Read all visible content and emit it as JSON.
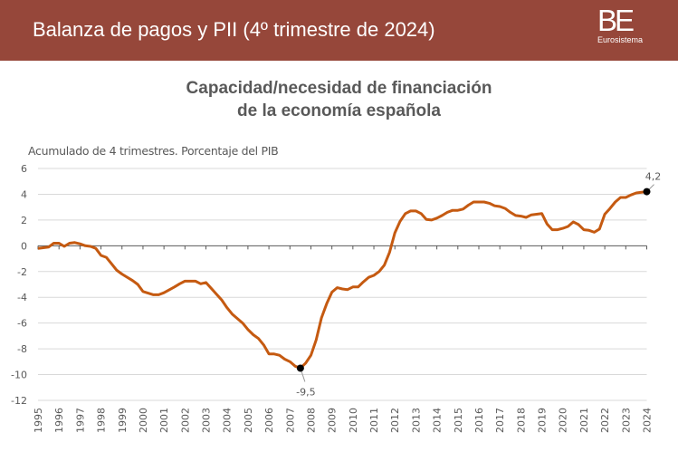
{
  "header": {
    "title": "Balanza de pagos y PII (4º trimestre de 2024)",
    "logo_text": "BE",
    "logo_sub": "Eurosistema"
  },
  "chart_data": {
    "type": "line",
    "title_line1": "Capacidad/necesidad de financiación",
    "title_line2": "de la economía española",
    "ylabel": "Acumulado de 4 trimestres. Porcentaje del PIB",
    "ylim": [
      -12,
      6
    ],
    "yticks": [
      6,
      4,
      2,
      0,
      -2,
      -4,
      -6,
      -8,
      -10,
      -12
    ],
    "xlim": [
      1995,
      2024
    ],
    "xticks": [
      1995,
      1996,
      1997,
      1998,
      1999,
      2000,
      2001,
      2002,
      2003,
      2004,
      2005,
      2006,
      2007,
      2008,
      2009,
      2010,
      2011,
      2012,
      2013,
      2014,
      2015,
      2016,
      2017,
      2018,
      2019,
      2020,
      2021,
      2022,
      2023,
      2024
    ],
    "grid": true,
    "color": "#c55a11",
    "annotations": [
      {
        "x": 2007.5,
        "y": -9.5,
        "label": "-9,5"
      },
      {
        "x": 2024.0,
        "y": 4.2,
        "label": "4,2"
      }
    ],
    "series": [
      {
        "x": [
          1995,
          1995.5,
          1995.75,
          1996,
          1996.25,
          1996.5,
          1996.75,
          1997,
          1997.25,
          1997.5,
          1997.75,
          1998,
          1998.25,
          1998.5,
          1998.75,
          1999,
          1999.5,
          1999.75,
          2000,
          2000.5,
          2000.75,
          2001,
          2001.5,
          2001.75,
          2002,
          2002.5,
          2002.75,
          2003,
          2003.25,
          2003.5,
          2003.75,
          2004,
          2004.25,
          2004.5,
          2004.75,
          2005,
          2005.25,
          2005.5,
          2005.75,
          2006,
          2006.25,
          2006.5,
          2006.75,
          2007,
          2007.25,
          2007.5,
          2007.75,
          2008,
          2008.25,
          2008.5,
          2008.75,
          2009,
          2009.25,
          2009.5,
          2009.75,
          2010,
          2010.25,
          2010.5,
          2010.75,
          2011,
          2011.25,
          2011.5,
          2011.75,
          2012,
          2012.25,
          2012.5,
          2012.75,
          2013,
          2013.25,
          2013.5,
          2013.75,
          2014,
          2014.25,
          2014.5,
          2014.75,
          2015,
          2015.25,
          2015.5,
          2015.75,
          2016,
          2016.25,
          2016.5,
          2016.75,
          2017,
          2017.25,
          2017.5,
          2017.75,
          2018,
          2018.25,
          2018.5,
          2018.75,
          2019,
          2019.25,
          2019.5,
          2019.75,
          2020,
          2020.25,
          2020.5,
          2020.75,
          2021,
          2021.25,
          2021.5,
          2021.75,
          2022,
          2022.25,
          2022.5,
          2022.75,
          2023,
          2023.25,
          2023.5,
          2023.75,
          2024
        ],
        "y": [
          -0.2,
          -0.1,
          0.2,
          0.2,
          -0.05,
          0.2,
          0.25,
          0.15,
          0,
          -0.05,
          -0.2,
          -0.75,
          -0.9,
          -1.4,
          -1.9,
          -2.2,
          -2.7,
          -3.0,
          -3.55,
          -3.8,
          -3.8,
          -3.65,
          -3.2,
          -2.95,
          -2.75,
          -2.75,
          -2.95,
          -2.85,
          -3.3,
          -3.75,
          -4.2,
          -4.8,
          -5.3,
          -5.65,
          -6.0,
          -6.5,
          -6.9,
          -7.2,
          -7.7,
          -8.4,
          -8.4,
          -8.5,
          -8.8,
          -9.0,
          -9.35,
          -9.5,
          -9.1,
          -8.5,
          -7.3,
          -5.6,
          -4.5,
          -3.6,
          -3.25,
          -3.35,
          -3.4,
          -3.2,
          -3.2,
          -2.8,
          -2.45,
          -2.3,
          -2.0,
          -1.5,
          -0.5,
          1.0,
          1.9,
          2.5,
          2.7,
          2.7,
          2.5,
          2.05,
          2.0,
          2.15,
          2.35,
          2.6,
          2.75,
          2.75,
          2.85,
          3.15,
          3.4,
          3.4,
          3.4,
          3.3,
          3.1,
          3.05,
          2.9,
          2.6,
          2.35,
          2.3,
          2.2,
          2.4,
          2.45,
          2.5,
          1.7,
          1.25,
          1.25,
          1.35,
          1.5,
          1.85,
          1.65,
          1.25,
          1.2,
          1.05,
          1.3,
          2.45,
          2.9,
          3.4,
          3.75,
          3.75,
          3.95,
          4.1,
          4.15,
          4.2
        ]
      }
    ]
  }
}
